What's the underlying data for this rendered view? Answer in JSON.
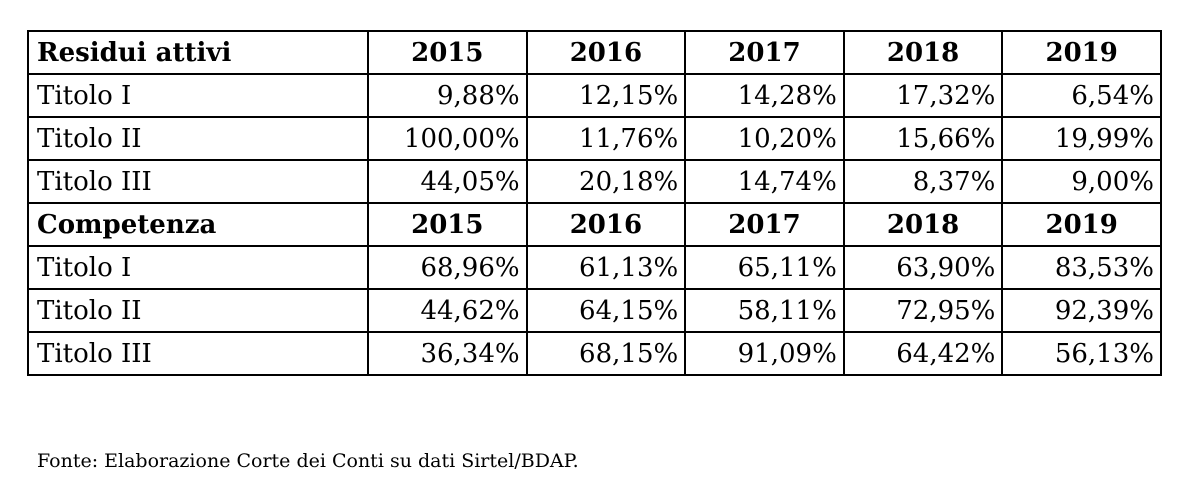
{
  "table": {
    "sections": [
      {
        "heading": "Residui attivi",
        "years": [
          "2015",
          "2016",
          "2017",
          "2018",
          "2019"
        ],
        "rows": [
          {
            "label": "Titolo I",
            "values": [
              "9,88%",
              "12,15%",
              "14,28%",
              "17,32%",
              "6,54%"
            ]
          },
          {
            "label": "Titolo II",
            "values": [
              "100,00%",
              "11,76%",
              "10,20%",
              "15,66%",
              "19,99%"
            ]
          },
          {
            "label": "Titolo III",
            "values": [
              "44,05%",
              "20,18%",
              "14,74%",
              "8,37%",
              "9,00%"
            ]
          }
        ]
      },
      {
        "heading": "Competenza",
        "years": [
          "2015",
          "2016",
          "2017",
          "2018",
          "2019"
        ],
        "rows": [
          {
            "label": "Titolo I",
            "values": [
              "68,96%",
              "61,13%",
              "65,11%",
              "63,90%",
              "83,53%"
            ]
          },
          {
            "label": "Titolo II",
            "values": [
              "44,62%",
              "64,15%",
              "58,11%",
              "72,95%",
              "92,39%"
            ]
          },
          {
            "label": "Titolo III",
            "values": [
              "36,34%",
              "68,15%",
              "91,09%",
              "64,42%",
              "56,13%"
            ]
          }
        ]
      }
    ]
  },
  "source_note": "Fonte: Elaborazione Corte dei Conti su dati Sirtel/BDAP."
}
